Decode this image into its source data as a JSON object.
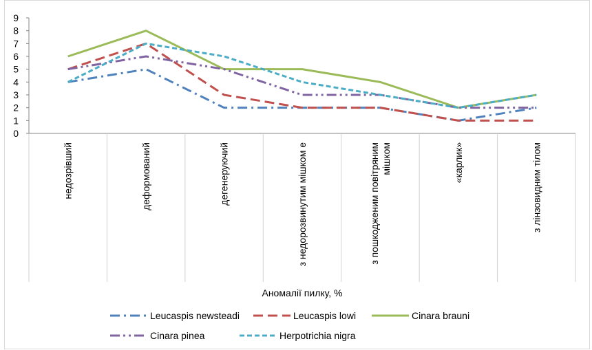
{
  "chart_data": {
    "type": "line",
    "title": "",
    "xlabel": "Аномалії пилку, %",
    "ylabel": "",
    "ylim": [
      0,
      9
    ],
    "yticks": [
      0,
      1,
      2,
      3,
      4,
      5,
      6,
      7,
      8,
      9
    ],
    "grid": false,
    "legend_position": "bottom",
    "categories": [
      [
        "недозрівший"
      ],
      [
        "деформований"
      ],
      [
        "дегенеруючий"
      ],
      [
        "з недорозвинутим мішком е"
      ],
      [
        "з пошкодженим повітряним",
        "мішком"
      ],
      [
        "«карлик»"
      ],
      [
        "з лінзовидним тілом"
      ]
    ],
    "series": [
      {
        "name": "Leucaspis newsteadi",
        "color": "#4f81bd",
        "dash": "14,6,3,6",
        "values": [
          4,
          5,
          2,
          2,
          2,
          1,
          2
        ]
      },
      {
        "name": "Leucaspis lowi",
        "color": "#c0504d",
        "dash": "14,7",
        "values": [
          5,
          7,
          3,
          2,
          2,
          1,
          1
        ]
      },
      {
        "name": "Cinara brauni",
        "color": "#9bbb59",
        "dash": "",
        "values": [
          6,
          8,
          5,
          5,
          4,
          2,
          3
        ]
      },
      {
        "name": "Cinara pinea",
        "color": "#8064a2",
        "dash": "14,5,3,5,3,5",
        "values": [
          5,
          6,
          5,
          3,
          3,
          2,
          2
        ]
      },
      {
        "name": "Herpotrichia nigra",
        "color": "#4bacc6",
        "dash": "7,4",
        "values": [
          4,
          7,
          6,
          4,
          3,
          2,
          3
        ]
      }
    ]
  }
}
